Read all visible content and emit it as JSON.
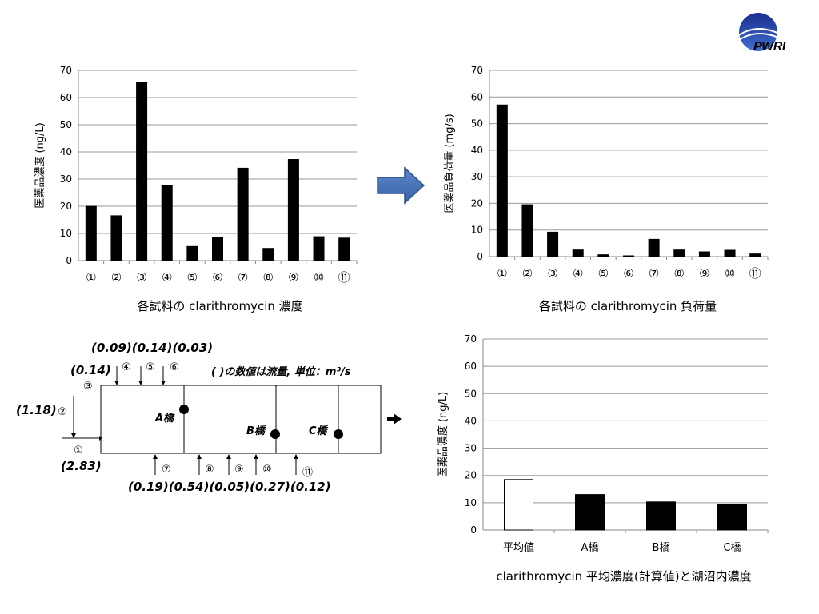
{
  "logo": {
    "text": "PWRI"
  },
  "chart_data": [
    {
      "type": "bar",
      "title": "各試料の clarithromycin 濃度",
      "ylabel": "医薬品濃度 (ng/L)",
      "xlabel": "",
      "ylim": [
        0,
        70
      ],
      "yticks": [
        0,
        10,
        20,
        30,
        40,
        50,
        60,
        70
      ],
      "categories": [
        "①",
        "②",
        "③",
        "④",
        "⑤",
        "⑥",
        "⑦",
        "⑧",
        "⑨",
        "⑩",
        "⑪"
      ],
      "values": [
        20,
        16.5,
        65.5,
        27.5,
        5.2,
        8.5,
        34,
        4.5,
        37.2,
        8.8,
        8.3
      ],
      "bar_color": "#000000",
      "grid": true
    },
    {
      "type": "bar",
      "title": "各試料の clarithromycin 負荷量",
      "ylabel": "医薬品負荷量 (mg/s)",
      "xlabel": "",
      "ylim": [
        0,
        70
      ],
      "yticks": [
        0,
        10,
        20,
        30,
        40,
        50,
        60,
        70
      ],
      "categories": [
        "①",
        "②",
        "③",
        "④",
        "⑤",
        "⑥",
        "⑦",
        "⑧",
        "⑨",
        "⑩",
        "⑪"
      ],
      "values": [
        57,
        19.5,
        9.2,
        2.5,
        0.7,
        0.3,
        6.5,
        2.5,
        1.8,
        2.4,
        1.0
      ],
      "bar_color": "#000000",
      "grid": true
    },
    {
      "type": "bar",
      "title": "clarithromycin 平均濃度(計算値)と湖沼内濃度",
      "ylabel": "医薬品濃度 (ng/L)",
      "xlabel": "",
      "ylim": [
        0,
        70
      ],
      "yticks": [
        0,
        10,
        20,
        30,
        40,
        50,
        60,
        70
      ],
      "categories": [
        "平均値",
        "A橋",
        "B橋",
        "C橋"
      ],
      "values": [
        18.5,
        13,
        10.3,
        9.3
      ],
      "bar_colors": [
        "#ffffff",
        "#000000",
        "#000000",
        "#000000"
      ],
      "grid": true
    }
  ],
  "diagram": {
    "note": "(  )の数値は流量,  単位：m³/s",
    "flows_top_group": "(0.09)(0.14)(0.03)",
    "flow_4": "(0.14)",
    "flow_2": "(1.18)",
    "flow_1": "(2.83)",
    "flows_bottom": "(0.19)(0.54)(0.05)(0.27)(0.12)",
    "inlet_labels": [
      "①",
      "②",
      "③",
      "④",
      "⑤",
      "⑥",
      "⑦",
      "⑧",
      "⑨",
      "⑩",
      "⑪"
    ],
    "points": [
      "A橋",
      "B橋",
      "C橋"
    ]
  }
}
